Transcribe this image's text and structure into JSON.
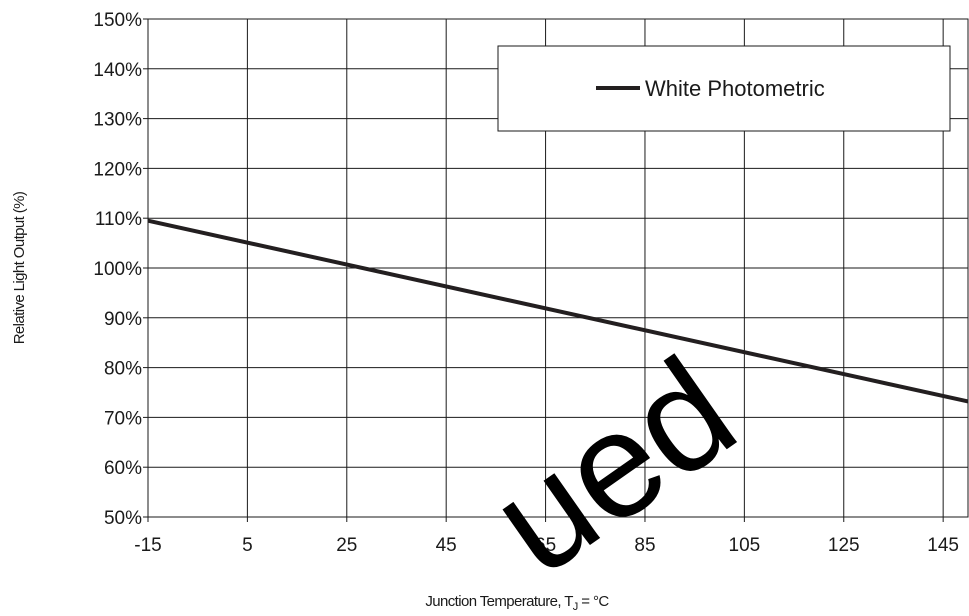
{
  "chart_data": {
    "type": "line",
    "title": "",
    "xlabel": "Junction Temperature, T",
    "xlabel_sub": "J",
    "xlabel_tail": " = °C",
    "ylabel": "Relative Light Output (%)",
    "xlim": [
      -15,
      150
    ],
    "ylim": [
      50,
      150
    ],
    "x_ticks": [
      -15,
      5,
      25,
      45,
      65,
      85,
      105,
      125,
      145
    ],
    "x_tick_labels": [
      "-15",
      "5",
      "25",
      "45",
      "65",
      "85",
      "105",
      "125",
      "145"
    ],
    "y_ticks": [
      50,
      60,
      70,
      80,
      90,
      100,
      110,
      120,
      130,
      140,
      150
    ],
    "y_tick_labels": [
      "50%",
      "60%",
      "70%",
      "80%",
      "90%",
      "100%",
      "110%",
      "120%",
      "130%",
      "140%",
      "150%"
    ],
    "grid": true,
    "legend_position": "top-right",
    "series": [
      {
        "name": "White Photometric",
        "color": "#231f20",
        "x": [
          -15,
          150
        ],
        "y": [
          109.5,
          73.2
        ]
      }
    ]
  },
  "watermark": {
    "text": "ued",
    "color": "#000000"
  }
}
